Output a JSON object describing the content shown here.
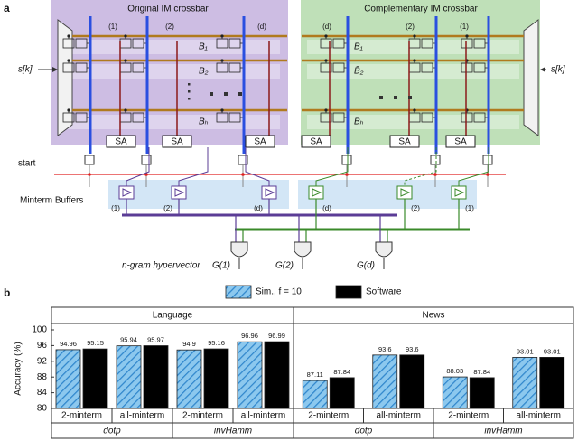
{
  "panel_a": {
    "label": "a",
    "left_title": "Original IM crossbar",
    "right_title": "Complementary IM crossbar",
    "left_columns": [
      "(1)",
      "(2)",
      "(d)"
    ],
    "right_columns": [
      "(d)",
      "(2)",
      "(1)"
    ],
    "left_rows": [
      "B₁",
      "B₂",
      "Bₕ"
    ],
    "right_rows": [
      "B̄₁",
      "B̄₂",
      "B̄ₕ"
    ],
    "input_left": "s[k]",
    "input_right": "s[k]",
    "sense_amps": [
      "SA",
      "SA",
      "SA",
      "SA",
      "SA",
      "SA"
    ],
    "start": "start",
    "buffers_label": "Minterm Buffers",
    "left_buffers": [
      "(1)",
      "(2)",
      "(d)"
    ],
    "right_buffers": [
      "(d)",
      "(2)",
      "(1)"
    ],
    "output_label": "n-gram hypervector",
    "outputs": [
      "G(1)",
      "G(2)",
      "G(d)"
    ]
  },
  "chart_data": {
    "type": "bar",
    "label": "b",
    "y_label": "Accuracy (%)",
    "panels": [
      "Language",
      "News"
    ],
    "groups": [
      "dotp",
      "invHamm",
      "dotp",
      "invHamm"
    ],
    "categories": [
      "2-minterm",
      "all-minterm",
      "2-minterm",
      "all-minterm",
      "2-minterm",
      "all-minterm",
      "2-minterm",
      "all-minterm"
    ],
    "series": [
      {
        "name": "Sim., f = 10",
        "color": "#8cc8ee",
        "hatch": true,
        "values": [
          94.96,
          95.94,
          94.9,
          96.96,
          87.11,
          93.6,
          88.03,
          93.01
        ]
      },
      {
        "name": "Software",
        "color": "#000000",
        "hatch": false,
        "values": [
          95.15,
          95.97,
          95.16,
          96.99,
          87.84,
          93.6,
          87.84,
          93.01
        ]
      }
    ],
    "ylim": [
      80,
      100
    ],
    "yticks": [
      80,
      84,
      88,
      92,
      96,
      100
    ],
    "legend": "top"
  }
}
